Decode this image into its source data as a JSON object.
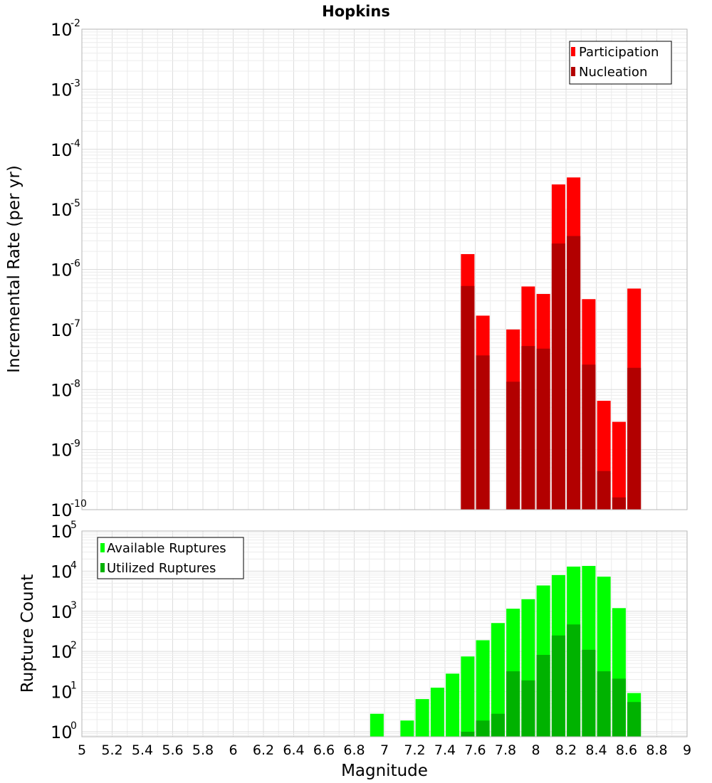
{
  "chart_data": [
    {
      "type": "bar",
      "scale": "log",
      "title": "Hopkins",
      "xlabel": "",
      "ylabel": "Incremental Rate (per yr)",
      "xlim": [
        5,
        9
      ],
      "ylim": [
        1e-10,
        0.01
      ],
      "y_tick_bases": [
        "10",
        "10",
        "10",
        "10",
        "10",
        "10",
        "10",
        "10",
        "10"
      ],
      "y_tick_exponents": [
        "-10",
        "-9",
        "-8",
        "-7",
        "-6",
        "-5",
        "-4",
        "-3",
        "-2"
      ],
      "legend": [
        "Participation",
        "Nucleation"
      ],
      "legend_position": "top-right",
      "colors": {
        "Participation": "#ff0000",
        "Nucleation": "#b20000"
      },
      "series": [
        {
          "name": "Participation",
          "x": [
            7.55,
            7.65,
            7.85,
            7.95,
            8.05,
            8.15,
            8.25,
            8.35,
            8.45,
            8.55,
            8.65
          ],
          "values": [
            1.8e-06,
            1.7e-07,
            1e-07,
            5.2e-07,
            3.9e-07,
            2.6e-05,
            3.4e-05,
            3.2e-07,
            6.5e-09,
            2.9e-09,
            4.8e-07
          ]
        },
        {
          "name": "Nucleation",
          "x": [
            7.55,
            7.65,
            7.85,
            7.95,
            8.05,
            8.15,
            8.25,
            8.35,
            8.45,
            8.55,
            8.65
          ],
          "values": [
            5.3e-07,
            3.7e-08,
            1.35e-08,
            5.3e-08,
            4.8e-08,
            2.7e-06,
            3.6e-06,
            2.6e-08,
            4.4e-10,
            1.6e-10,
            2.3e-08
          ]
        }
      ]
    },
    {
      "type": "bar",
      "scale": "log",
      "title": "",
      "xlabel": "Magnitude",
      "ylabel": "Rupture Count",
      "xlim": [
        5,
        9
      ],
      "ylim": [
        0.75,
        100000.0
      ],
      "x_ticks": [
        "5",
        "5.2",
        "5.4",
        "5.6",
        "5.8",
        "6",
        "6.2",
        "6.4",
        "6.6",
        "6.8",
        "7",
        "7.2",
        "7.4",
        "7.6",
        "7.8",
        "8",
        "8.2",
        "8.4",
        "8.6",
        "8.8",
        "9"
      ],
      "y_tick_bases": [
        "10",
        "10",
        "10",
        "10",
        "10",
        "10"
      ],
      "y_tick_exponents": [
        "0",
        "1",
        "2",
        "3",
        "4",
        "5"
      ],
      "legend": [
        "Available Ruptures",
        "Utilized Ruptures"
      ],
      "legend_position": "top-left",
      "colors": {
        "Available Ruptures": "#00ff00",
        "Utilized Ruptures": "#00b200"
      },
      "series": [
        {
          "name": "Available Ruptures",
          "x": [
            6.95,
            7.15,
            7.25,
            7.35,
            7.45,
            7.55,
            7.65,
            7.75,
            7.85,
            7.95,
            8.05,
            8.15,
            8.25,
            8.35,
            8.45,
            8.55,
            8.65
          ],
          "values": [
            2.8,
            1.9,
            6.5,
            12.5,
            28,
            75,
            190,
            510,
            1160,
            2000,
            4400,
            8000,
            13000,
            13500,
            7300,
            1200,
            9.2
          ]
        },
        {
          "name": "Utilized Ruptures",
          "x": [
            7.55,
            7.65,
            7.75,
            7.85,
            7.95,
            8.05,
            8.15,
            8.25,
            8.35,
            8.45,
            8.55,
            8.65
          ],
          "values": [
            1.0,
            1.9,
            2.8,
            32,
            19,
            82,
            250,
            470,
            110,
            32,
            21,
            5.5
          ]
        }
      ]
    }
  ]
}
